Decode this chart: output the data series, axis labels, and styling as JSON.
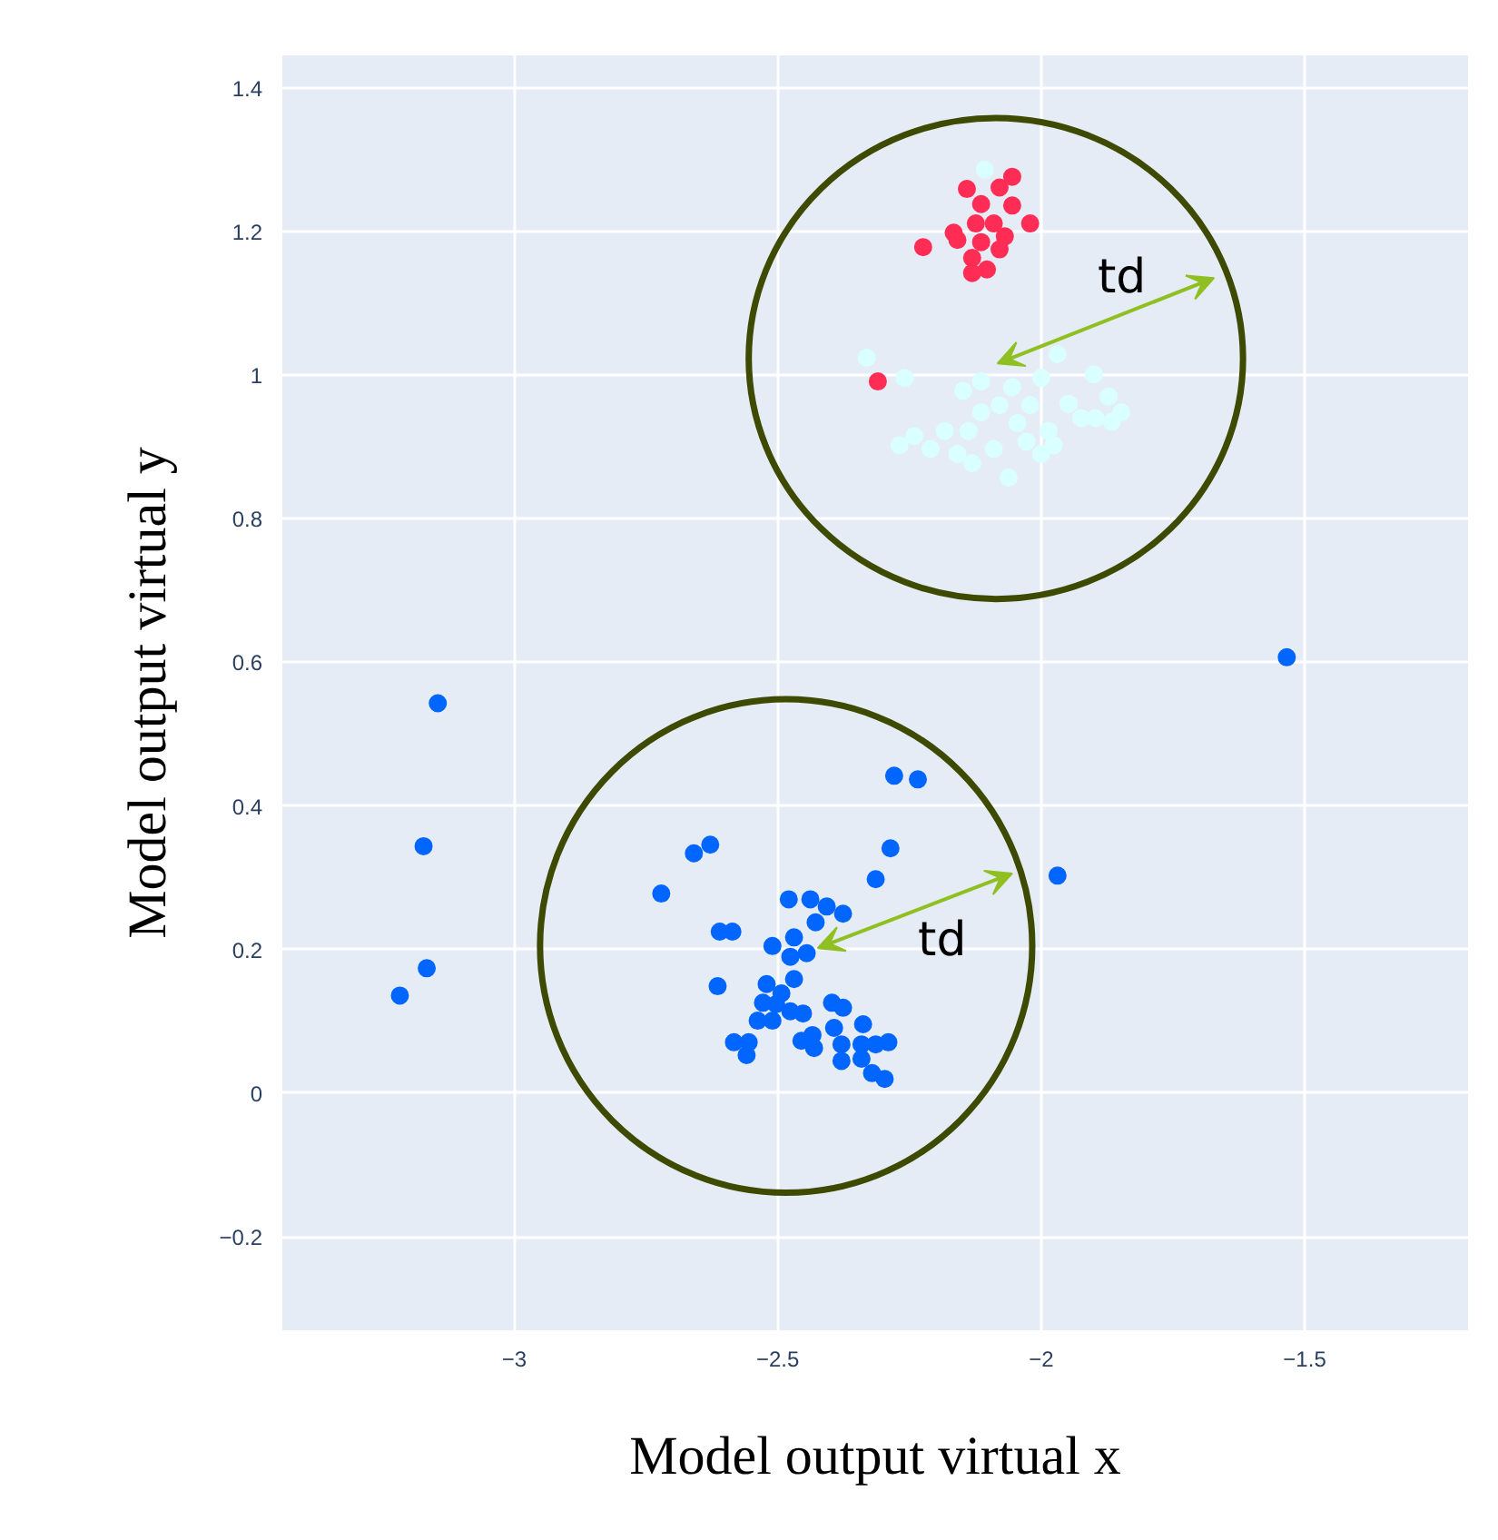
{
  "chart_data": {
    "type": "scatter",
    "xlabel": "Model output virtual x",
    "ylabel": "Model output virtual y",
    "xlim": [
      -3.44,
      -1.19
    ],
    "ylim": [
      -0.33,
      1.445
    ],
    "xticks": [
      {
        "value": -3,
        "label": "−3"
      },
      {
        "value": -2.5,
        "label": "−2.5"
      },
      {
        "value": -2,
        "label": "−2"
      },
      {
        "value": -1.5,
        "label": "−1.5"
      }
    ],
    "yticks": [
      {
        "value": -0.2,
        "label": "−0.2"
      },
      0,
      0.2,
      0.4,
      0.6,
      0.8,
      1,
      1.2,
      1.4
    ],
    "grid": true,
    "marker": "circle",
    "series": [
      {
        "color": "#0066ff",
        "x": [
          -3.145,
          -3.172,
          -3.166,
          -3.217,
          -1.534,
          -1.969,
          -2.721,
          -2.279,
          -2.234,
          -2.659,
          -2.628,
          -2.286,
          -2.314,
          -2.479,
          -2.438,
          -2.407,
          -2.376,
          -2.428,
          -2.61,
          -2.586,
          -2.469,
          -2.51,
          -2.476,
          -2.445,
          -2.614,
          -2.469,
          -2.521,
          -2.493,
          -2.528,
          -2.503,
          -2.476,
          -2.538,
          -2.51,
          -2.452,
          -2.397,
          -2.376,
          -2.338,
          -2.393,
          -2.434,
          -2.583,
          -2.555,
          -2.559,
          -2.455,
          -2.431,
          -2.379,
          -2.341,
          -2.314,
          -2.29,
          -2.379,
          -2.341,
          -2.321,
          -2.297
        ],
        "values": [
          0.543,
          0.344,
          0.174,
          0.136,
          0.607,
          0.303,
          0.278,
          0.442,
          0.437,
          0.334,
          0.346,
          0.341,
          0.298,
          0.27,
          0.27,
          0.26,
          0.25,
          0.238,
          0.225,
          0.225,
          0.217,
          0.205,
          0.19,
          0.195,
          0.149,
          0.159,
          0.152,
          0.139,
          0.126,
          0.124,
          0.114,
          0.101,
          0.101,
          0.111,
          0.126,
          0.119,
          0.096,
          0.091,
          0.081,
          0.071,
          0.071,
          0.053,
          0.073,
          0.063,
          0.068,
          0.068,
          0.068,
          0.071,
          0.045,
          0.048,
          0.028,
          0.02
        ]
      },
      {
        "color": "#d9ffff",
        "x": [
          -2.107,
          -2.331,
          -2.259,
          -2.148,
          -2.114,
          -1.969,
          -1.9,
          -1.872,
          -1.848,
          -1.924,
          -1.897,
          -1.866,
          -1.948,
          -2.0,
          -2.055,
          -2.079,
          -2.021,
          -2.114,
          -2.045,
          -1.986,
          -2.138,
          -2.183,
          -2.241,
          -2.269,
          -2.21,
          -2.159,
          -2.09,
          -2.0,
          -1.976,
          -2.131,
          -2.062,
          -2.028
        ],
        "values": [
          1.286,
          1.024,
          0.996,
          0.978,
          0.991,
          1.029,
          1.001,
          0.97,
          0.948,
          0.94,
          0.94,
          0.935,
          0.96,
          0.996,
          0.983,
          0.958,
          0.958,
          0.948,
          0.933,
          0.922,
          0.922,
          0.922,
          0.915,
          0.902,
          0.897,
          0.89,
          0.897,
          0.89,
          0.902,
          0.877,
          0.857,
          0.907
        ]
      },
      {
        "color": "#ff2d55",
        "x": [
          -2.224,
          -2.141,
          -2.079,
          -2.055,
          -2.114,
          -2.055,
          -2.166,
          -2.124,
          -2.09,
          -2.069,
          -2.021,
          -2.114,
          -2.079,
          -2.159,
          -2.131,
          -2.103,
          -2.131,
          -2.31
        ],
        "values": [
          1.178,
          1.259,
          1.261,
          1.276,
          1.238,
          1.236,
          1.198,
          1.211,
          1.211,
          1.193,
          1.211,
          1.185,
          1.175,
          1.188,
          1.163,
          1.147,
          1.142,
          0.991
        ]
      }
    ],
    "annotations": [
      "td",
      "td"
    ]
  }
}
